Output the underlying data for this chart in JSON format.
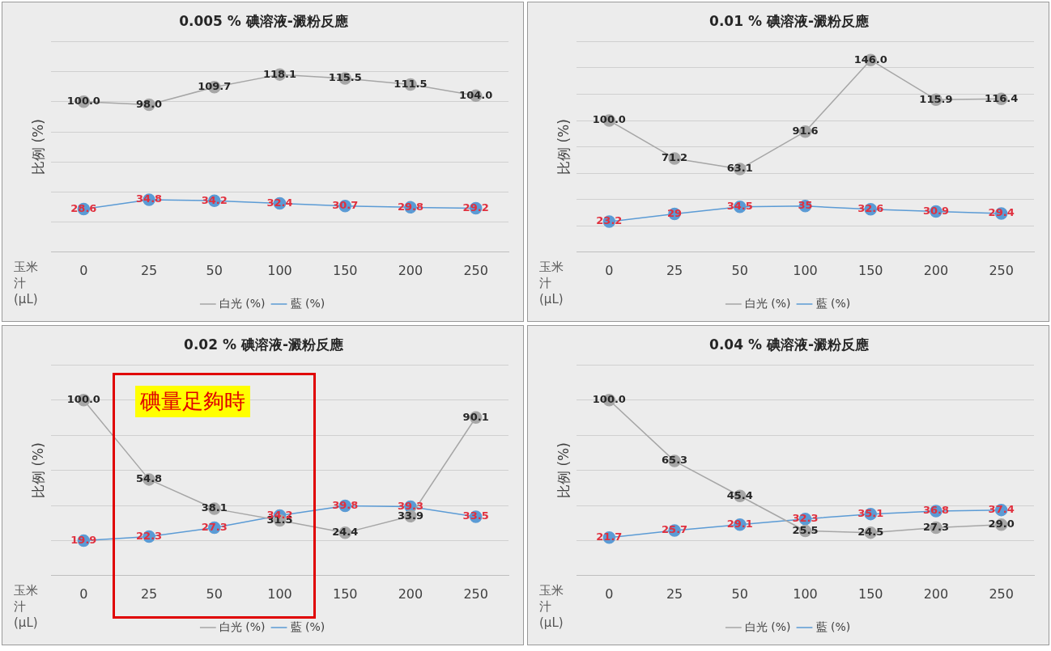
{
  "chart_data": [
    {
      "type": "line",
      "title": "0.005 % 碘溶液-澱粉反應",
      "xlabel": "玉米汁(μL)",
      "ylabel": "比例 (%)",
      "categories": [
        "0",
        "25",
        "50",
        "100",
        "150",
        "200",
        "250"
      ],
      "series": [
        {
          "name": "白光 (%)",
          "color": "#a6a6a6",
          "values": [
            100.0,
            98.0,
            109.7,
            118.1,
            115.5,
            111.5,
            104.0
          ],
          "value_labels": [
            "100.0",
            "98.0",
            "109.7",
            "118.1",
            "115.5",
            "111.5",
            "104.0"
          ]
        },
        {
          "name": "藍 (%)",
          "color": "#5b9bd5",
          "values": [
            28.6,
            34.8,
            34.2,
            32.4,
            30.7,
            29.8,
            29.2
          ],
          "value_labels": [
            "28.6",
            "34.8",
            "34.2",
            "32.4",
            "30.7",
            "29.8",
            "29.2"
          ]
        }
      ],
      "ylim": [
        0,
        140
      ],
      "yticks": [
        {
          "value": 0,
          "label": null
        },
        {
          "value": 20,
          "label": null
        },
        {
          "value": 40,
          "label": null
        },
        {
          "value": 60,
          "label": null
        },
        {
          "value": 80,
          "label": null
        },
        {
          "value": 100,
          "label": null
        },
        {
          "value": 120,
          "label": null
        },
        {
          "value": 140,
          "label": null
        }
      ],
      "tick_labels": "x",
      "grid": "y",
      "legend": "bottom",
      "marker": "circle"
    },
    {
      "type": "line",
      "title": "0.01 % 碘溶液-澱粉反應",
      "xlabel": "玉米汁(μL)",
      "ylabel": "比例 (%)",
      "categories": [
        "0",
        "25",
        "50",
        "100",
        "150",
        "200",
        "250"
      ],
      "series": [
        {
          "name": "白光 (%)",
          "color": "#a6a6a6",
          "values": [
            100.0,
            71.2,
            63.1,
            91.6,
            146.0,
            115.9,
            116.4
          ],
          "value_labels": [
            "100.0",
            "71.2",
            "63.1",
            "91.6",
            "146.0",
            "115.9",
            "116.4"
          ]
        },
        {
          "name": "藍 (%)",
          "color": "#5b9bd5",
          "values": [
            23.2,
            29,
            34.5,
            35,
            32.6,
            30.9,
            29.4
          ],
          "value_labels": [
            "23.2",
            "29",
            "34.5",
            "35",
            "32.6",
            "30.9",
            "29.4"
          ]
        }
      ],
      "ylim": [
        0,
        160
      ],
      "yticks": [
        {
          "value": 0,
          "label": null
        },
        {
          "value": 20,
          "label": null
        },
        {
          "value": 40,
          "label": null
        },
        {
          "value": 60,
          "label": null
        },
        {
          "value": 80,
          "label": null
        },
        {
          "value": 100,
          "label": null
        },
        {
          "value": 120,
          "label": null
        },
        {
          "value": 140,
          "label": null
        },
        {
          "value": 160,
          "label": null
        }
      ],
      "tick_labels": "x",
      "grid": "y",
      "legend": "bottom",
      "marker": "circle"
    },
    {
      "type": "line",
      "title": "0.02 % 碘溶液-澱粉反應",
      "xlabel": "玉米汁(μL)",
      "ylabel": "比例 (%)",
      "categories": [
        "0",
        "25",
        "50",
        "100",
        "150",
        "200",
        "250"
      ],
      "series": [
        {
          "name": "白光 (%)",
          "color": "#a6a6a6",
          "values": [
            100.0,
            54.8,
            38.1,
            31.5,
            24.4,
            33.9,
            90.1
          ],
          "value_labels": [
            "100.0",
            "54.8",
            "38.1",
            "31.5",
            "24.4",
            "33.9",
            "90.1"
          ]
        },
        {
          "name": "藍 (%)",
          "color": "#5b9bd5",
          "values": [
            19.9,
            22.3,
            27.3,
            34.2,
            39.8,
            39.3,
            33.5
          ],
          "value_labels": [
            "19.9",
            "22.3",
            "27.3",
            "34.2",
            "39.8",
            "39.3",
            "33.5"
          ]
        }
      ],
      "ylim": [
        0,
        120
      ],
      "yticks": [
        {
          "value": 0,
          "label": null
        },
        {
          "value": 20,
          "label": null
        },
        {
          "value": 40,
          "label": null
        },
        {
          "value": 60,
          "label": null
        },
        {
          "value": 80,
          "label": null
        },
        {
          "value": 100,
          "label": null
        },
        {
          "value": 120,
          "label": null
        }
      ],
      "tick_labels": "x",
      "grid": "y",
      "legend": "bottom",
      "marker": "circle",
      "annotations": [
        "碘量足夠時"
      ]
    },
    {
      "type": "line",
      "title": "0.04 % 碘溶液-澱粉反應",
      "xlabel": "玉米汁(μL)",
      "ylabel": "比例 (%)",
      "categories": [
        "0",
        "25",
        "50",
        "100",
        "150",
        "200",
        "250"
      ],
      "series": [
        {
          "name": "白光 (%)",
          "color": "#a6a6a6",
          "values": [
            100.0,
            65.3,
            45.4,
            25.5,
            24.5,
            27.3,
            29.0
          ],
          "value_labels": [
            "100.0",
            "65.3",
            "45.4",
            "25.5",
            "24.5",
            "27.3",
            "29.0"
          ]
        },
        {
          "name": "藍 (%)",
          "color": "#5b9bd5",
          "values": [
            21.7,
            25.7,
            29.1,
            32.3,
            35.1,
            36.8,
            37.4
          ],
          "value_labels": [
            "21.7",
            "25.7",
            "29.1",
            "32.3",
            "35.1",
            "36.8",
            "37.4"
          ]
        }
      ],
      "ylim": [
        0,
        120
      ],
      "yticks": [
        {
          "value": 0,
          "label": null
        },
        {
          "value": 20,
          "label": null
        },
        {
          "value": 40,
          "label": null
        },
        {
          "value": 60,
          "label": null
        },
        {
          "value": 80,
          "label": null
        },
        {
          "value": 100,
          "label": null
        },
        {
          "value": 120,
          "label": null
        }
      ],
      "tick_labels": "x",
      "grid": "y",
      "legend": "bottom",
      "marker": "circle"
    }
  ]
}
